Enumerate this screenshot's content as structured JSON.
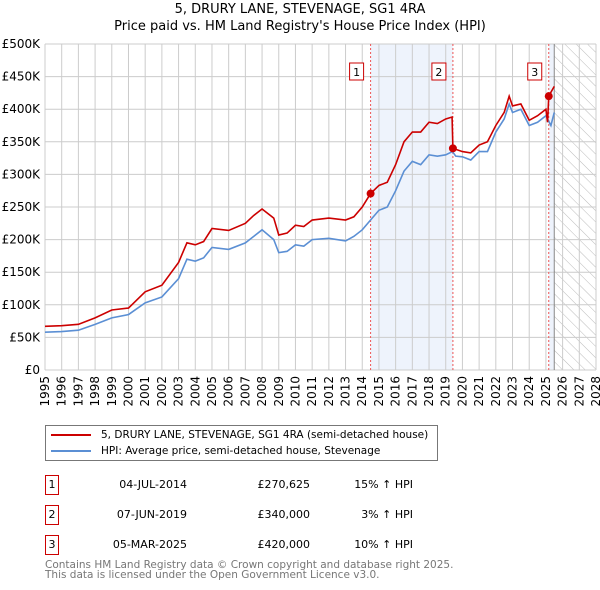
{
  "chart_data": {
    "type": "line",
    "title": "5, DRURY LANE, STEVENAGE, SG1 4RA",
    "subtitle": "Price paid vs. HM Land Registry's House Price Index (HPI)",
    "xlim": [
      1995,
      2028
    ],
    "ylim": [
      0,
      500000
    ],
    "x_ticks": [
      "1995",
      "1996",
      "1997",
      "1998",
      "1999",
      "2000",
      "2001",
      "2002",
      "2003",
      "2004",
      "2005",
      "2006",
      "2007",
      "2008",
      "2009",
      "2010",
      "2011",
      "2012",
      "2013",
      "2014",
      "2015",
      "2016",
      "2017",
      "2018",
      "2019",
      "2020",
      "2021",
      "2022",
      "2023",
      "2024",
      "2025",
      "2026",
      "2027",
      "2028"
    ],
    "y_ticks": [
      {
        "v": 0,
        "label": "£0"
      },
      {
        "v": 50000,
        "label": "£50K"
      },
      {
        "v": 100000,
        "label": "£100K"
      },
      {
        "v": 150000,
        "label": "£150K"
      },
      {
        "v": 200000,
        "label": "£200K"
      },
      {
        "v": 250000,
        "label": "£250K"
      },
      {
        "v": 300000,
        "label": "£300K"
      },
      {
        "v": 350000,
        "label": "£350K"
      },
      {
        "v": 400000,
        "label": "£400K"
      },
      {
        "v": 450000,
        "label": "£450K"
      },
      {
        "v": 500000,
        "label": "£500K"
      }
    ],
    "grid": true,
    "shaded_ranges": [
      [
        2014.5,
        2019.43
      ],
      [
        2025.17,
        2025.5
      ]
    ],
    "forecast_hatch_from": 2025.5,
    "series": [
      {
        "name": "5, DRURY LANE, STEVENAGE, SG1 4RA (semi-detached house)",
        "color": "#cc0000",
        "x": [
          1995,
          1996,
          1997,
          1998,
          1999,
          2000,
          2001,
          2002,
          2003,
          2003.5,
          2004,
          2004.5,
          2005,
          2006,
          2007,
          2007.5,
          2008,
          2008.7,
          2009,
          2009.5,
          2010,
          2010.5,
          2011,
          2012,
          2013,
          2013.5,
          2014,
          2014.5,
          2015,
          2015.5,
          2016,
          2016.5,
          2017,
          2017.5,
          2018,
          2018.5,
          2019,
          2019.38,
          2019.43,
          2020,
          2020.5,
          2021,
          2021.5,
          2022,
          2022.5,
          2022.8,
          2023,
          2023.5,
          2024,
          2024.5,
          2025,
          2025.1,
          2025.17,
          2025.5
        ],
        "y": [
          67000,
          68000,
          70000,
          80000,
          92000,
          95000,
          120000,
          130000,
          165000,
          195000,
          192000,
          197000,
          217000,
          214000,
          225000,
          237000,
          247000,
          233000,
          207000,
          210000,
          222000,
          220000,
          230000,
          233000,
          230000,
          235000,
          250000,
          270625,
          283000,
          288000,
          315000,
          350000,
          365000,
          365000,
          380000,
          378000,
          385000,
          388000,
          340000,
          335000,
          333000,
          345000,
          350000,
          375000,
          395000,
          420000,
          405000,
          408000,
          383000,
          390000,
          400000,
          380000,
          420000,
          435000
        ]
      },
      {
        "name": "HPI: Average price, semi-detached house, Stevenage",
        "color": "#5b8fd4",
        "x": [
          1995,
          1996,
          1997,
          1998,
          1999,
          2000,
          2001,
          2002,
          2003,
          2003.5,
          2004,
          2004.5,
          2005,
          2006,
          2007,
          2007.5,
          2008,
          2008.7,
          2009,
          2009.5,
          2010,
          2010.5,
          2011,
          2012,
          2013,
          2013.5,
          2014,
          2014.5,
          2015,
          2015.5,
          2016,
          2016.5,
          2017,
          2017.5,
          2018,
          2018.5,
          2019,
          2019.4,
          2019.6,
          2020,
          2020.5,
          2021,
          2021.5,
          2022,
          2022.5,
          2022.8,
          2023,
          2023.5,
          2024,
          2024.5,
          2025,
          2025.3,
          2025.5
        ],
        "y": [
          58000,
          59000,
          61000,
          70000,
          80000,
          85000,
          103000,
          112000,
          140000,
          170000,
          167000,
          172000,
          188000,
          185000,
          195000,
          205000,
          215000,
          200000,
          180000,
          182000,
          192000,
          190000,
          200000,
          202000,
          198000,
          205000,
          215000,
          230000,
          245000,
          250000,
          275000,
          305000,
          320000,
          315000,
          330000,
          328000,
          330000,
          335000,
          328000,
          327000,
          322000,
          335000,
          335000,
          365000,
          385000,
          408000,
          395000,
          400000,
          375000,
          380000,
          390000,
          375000,
          395000
        ]
      }
    ],
    "sales": [
      {
        "id": "1",
        "x": 2014.5,
        "y": 270625,
        "date": "04-JUL-2014",
        "price": "£270,625",
        "hpi": "15% ↑ HPI"
      },
      {
        "id": "2",
        "x": 2019.43,
        "y": 340000,
        "date": "07-JUN-2019",
        "price": "£340,000",
        "hpi": "3% ↑ HPI"
      },
      {
        "id": "3",
        "x": 2025.17,
        "y": 420000,
        "date": "05-MAR-2025",
        "price": "£420,000",
        "hpi": "10% ↑ HPI"
      }
    ]
  },
  "legend": {
    "property": "5, DRURY LANE, STEVENAGE, SG1 4RA (semi-detached house)",
    "hpi": "HPI: Average price, semi-detached house, Stevenage"
  },
  "footer": {
    "line1": "Contains HM Land Registry data © Crown copyright and database right 2025.",
    "line2": "This data is licensed under the Open Government Licence v3.0."
  }
}
